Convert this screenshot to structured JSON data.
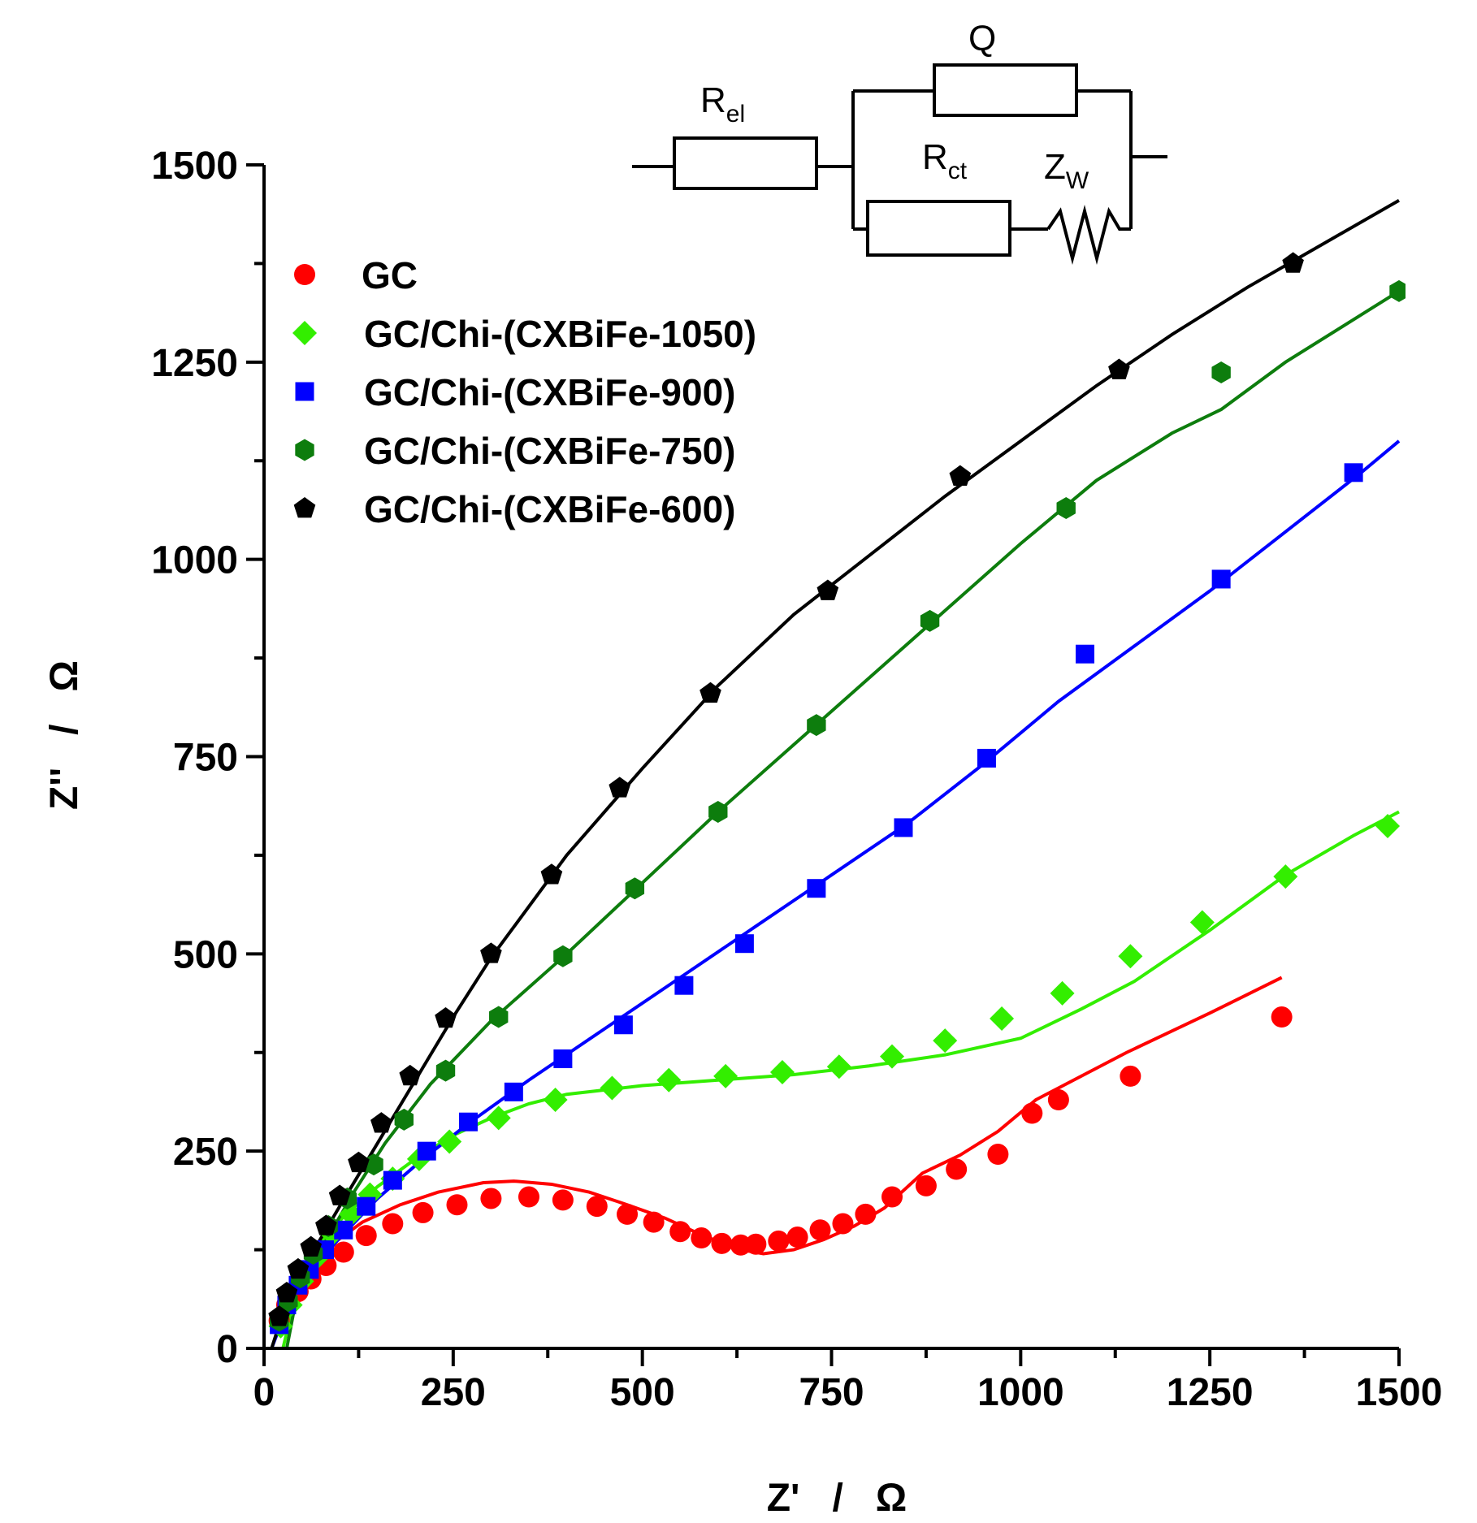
{
  "chart_data": {
    "type": "scatter",
    "title": "",
    "xlabel": "Z'   /   Ω",
    "ylabel": "Z''   /   Ω",
    "xlim": [
      0,
      1500
    ],
    "ylim": [
      0,
      1500
    ],
    "x_ticks": [
      0,
      250,
      500,
      750,
      1000,
      1250,
      1500
    ],
    "y_ticks": [
      0,
      250,
      500,
      750,
      1000,
      1250,
      1500
    ],
    "legend_position": "upper-left",
    "series": [
      {
        "name": "GC",
        "color": "#ff0000",
        "marker": "circle",
        "points": [
          [
            20,
            35
          ],
          [
            30,
            55
          ],
          [
            45,
            72
          ],
          [
            62,
            88
          ],
          [
            82,
            105
          ],
          [
            105,
            122
          ],
          [
            135,
            143
          ],
          [
            170,
            158
          ],
          [
            210,
            172
          ],
          [
            255,
            182
          ],
          [
            300,
            190
          ],
          [
            350,
            192
          ],
          [
            395,
            188
          ],
          [
            440,
            180
          ],
          [
            480,
            170
          ],
          [
            515,
            160
          ],
          [
            550,
            148
          ],
          [
            578,
            140
          ],
          [
            605,
            133
          ],
          [
            630,
            131
          ],
          [
            650,
            132
          ],
          [
            680,
            136
          ],
          [
            705,
            141
          ],
          [
            735,
            150
          ],
          [
            765,
            158
          ],
          [
            795,
            170
          ],
          [
            830,
            192
          ],
          [
            875,
            206
          ],
          [
            915,
            227
          ],
          [
            970,
            246
          ],
          [
            1015,
            298
          ],
          [
            1050,
            315
          ],
          [
            1145,
            345
          ],
          [
            1345,
            420
          ]
        ],
        "fit": [
          [
            12,
            25
          ],
          [
            40,
            80
          ],
          [
            80,
            125
          ],
          [
            130,
            160
          ],
          [
            180,
            182
          ],
          [
            230,
            198
          ],
          [
            290,
            210
          ],
          [
            330,
            212
          ],
          [
            380,
            208
          ],
          [
            430,
            198
          ],
          [
            480,
            182
          ],
          [
            530,
            165
          ],
          [
            580,
            143
          ],
          [
            630,
            125
          ],
          [
            660,
            120
          ],
          [
            700,
            125
          ],
          [
            740,
            138
          ],
          [
            780,
            155
          ],
          [
            820,
            178
          ],
          [
            870,
            222
          ],
          [
            920,
            245
          ],
          [
            970,
            275
          ],
          [
            1020,
            315
          ],
          [
            1080,
            345
          ],
          [
            1140,
            375
          ],
          [
            1250,
            425
          ],
          [
            1345,
            470
          ]
        ]
      },
      {
        "name": "GC/Chi-(CXBiFe-1050)",
        "color": "#33ee00",
        "marker": "diamond",
        "points": [
          [
            22,
            28
          ],
          [
            35,
            55
          ],
          [
            50,
            85
          ],
          [
            70,
            115
          ],
          [
            90,
            145
          ],
          [
            115,
            170
          ],
          [
            140,
            195
          ],
          [
            170,
            215
          ],
          [
            205,
            240
          ],
          [
            245,
            262
          ],
          [
            310,
            292
          ],
          [
            385,
            315
          ],
          [
            460,
            330
          ],
          [
            535,
            340
          ],
          [
            610,
            345
          ],
          [
            685,
            350
          ],
          [
            760,
            357
          ],
          [
            830,
            370
          ],
          [
            900,
            390
          ],
          [
            975,
            418
          ],
          [
            1055,
            450
          ],
          [
            1145,
            497
          ],
          [
            1240,
            540
          ],
          [
            1350,
            598
          ],
          [
            1485,
            662
          ]
        ],
        "fit": [
          [
            25,
            0
          ],
          [
            40,
            60
          ],
          [
            60,
            105
          ],
          [
            80,
            140
          ],
          [
            110,
            172
          ],
          [
            150,
            205
          ],
          [
            200,
            240
          ],
          [
            250,
            270
          ],
          [
            300,
            292
          ],
          [
            350,
            310
          ],
          [
            400,
            322
          ],
          [
            500,
            333
          ],
          [
            600,
            340
          ],
          [
            700,
            347
          ],
          [
            800,
            358
          ],
          [
            900,
            372
          ],
          [
            1000,
            393
          ],
          [
            1080,
            430
          ],
          [
            1150,
            465
          ],
          [
            1250,
            530
          ],
          [
            1350,
            600
          ],
          [
            1440,
            650
          ],
          [
            1500,
            680
          ]
        ]
      },
      {
        "name": "GC/Chi-(CXBiFe-900)",
        "color": "#0000ff",
        "marker": "square",
        "points": [
          [
            20,
            30
          ],
          [
            30,
            55
          ],
          [
            45,
            80
          ],
          [
            60,
            100
          ],
          [
            80,
            125
          ],
          [
            105,
            150
          ],
          [
            135,
            180
          ],
          [
            170,
            213
          ],
          [
            215,
            250
          ],
          [
            270,
            287
          ],
          [
            330,
            325
          ],
          [
            395,
            367
          ],
          [
            475,
            410
          ],
          [
            555,
            460
          ],
          [
            635,
            513
          ],
          [
            730,
            583
          ],
          [
            845,
            660
          ],
          [
            955,
            748
          ],
          [
            1085,
            880
          ],
          [
            1265,
            975
          ],
          [
            1440,
            1110
          ]
        ],
        "fit": [
          [
            10,
            0
          ],
          [
            30,
            50
          ],
          [
            60,
            95
          ],
          [
            100,
            140
          ],
          [
            150,
            190
          ],
          [
            210,
            240
          ],
          [
            270,
            285
          ],
          [
            350,
            340
          ],
          [
            450,
            405
          ],
          [
            550,
            470
          ],
          [
            650,
            535
          ],
          [
            750,
            600
          ],
          [
            850,
            665
          ],
          [
            950,
            740
          ],
          [
            1050,
            820
          ],
          [
            1150,
            890
          ],
          [
            1250,
            960
          ],
          [
            1350,
            1035
          ],
          [
            1450,
            1110
          ],
          [
            1500,
            1150
          ]
        ]
      },
      {
        "name": "GC/Chi-(CXBiFe-750)",
        "color": "#0d7d0d",
        "marker": "hexagon",
        "points": [
          [
            20,
            35
          ],
          [
            32,
            60
          ],
          [
            48,
            90
          ],
          [
            65,
            120
          ],
          [
            85,
            155
          ],
          [
            110,
            190
          ],
          [
            145,
            233
          ],
          [
            185,
            290
          ],
          [
            240,
            352
          ],
          [
            310,
            420
          ],
          [
            395,
            497
          ],
          [
            490,
            583
          ],
          [
            600,
            680
          ],
          [
            730,
            790
          ],
          [
            880,
            922
          ],
          [
            1060,
            1065
          ],
          [
            1265,
            1237
          ],
          [
            1500,
            1340
          ]
        ],
        "fit": [
          [
            30,
            0
          ],
          [
            40,
            50
          ],
          [
            60,
            100
          ],
          [
            90,
            150
          ],
          [
            120,
            200
          ],
          [
            160,
            260
          ],
          [
            220,
            335
          ],
          [
            300,
            415
          ],
          [
            400,
            500
          ],
          [
            500,
            590
          ],
          [
            600,
            680
          ],
          [
            700,
            765
          ],
          [
            800,
            850
          ],
          [
            900,
            935
          ],
          [
            1000,
            1020
          ],
          [
            1100,
            1100
          ],
          [
            1200,
            1160
          ],
          [
            1265,
            1190
          ],
          [
            1350,
            1250
          ],
          [
            1450,
            1310
          ],
          [
            1500,
            1340
          ]
        ]
      },
      {
        "name": "GC/Chi-(CXBiFe-600)",
        "color": "#000000",
        "marker": "pentagon",
        "points": [
          [
            20,
            40
          ],
          [
            30,
            70
          ],
          [
            45,
            100
          ],
          [
            62,
            128
          ],
          [
            82,
            155
          ],
          [
            100,
            193
          ],
          [
            125,
            235
          ],
          [
            155,
            285
          ],
          [
            193,
            345
          ],
          [
            240,
            418
          ],
          [
            300,
            500
          ],
          [
            380,
            600
          ],
          [
            470,
            710
          ],
          [
            590,
            830
          ],
          [
            745,
            960
          ],
          [
            920,
            1105
          ],
          [
            1130,
            1240
          ],
          [
            1360,
            1375
          ]
        ],
        "fit": [
          [
            10,
            0
          ],
          [
            30,
            60
          ],
          [
            60,
            115
          ],
          [
            100,
            180
          ],
          [
            150,
            260
          ],
          [
            200,
            340
          ],
          [
            250,
            420
          ],
          [
            300,
            495
          ],
          [
            400,
            625
          ],
          [
            500,
            735
          ],
          [
            600,
            840
          ],
          [
            700,
            930
          ],
          [
            800,
            1005
          ],
          [
            900,
            1080
          ],
          [
            1000,
            1150
          ],
          [
            1100,
            1220
          ],
          [
            1200,
            1285
          ],
          [
            1300,
            1345
          ],
          [
            1400,
            1400
          ],
          [
            1500,
            1455
          ]
        ]
      }
    ],
    "inset": {
      "type": "equivalent-circuit",
      "labels": {
        "q": "Q",
        "rel_main": "R",
        "rel_sub": "el",
        "rct_main": "R",
        "rct_sub": "ct",
        "zw_main": "Z",
        "zw_sub": "W"
      }
    }
  }
}
